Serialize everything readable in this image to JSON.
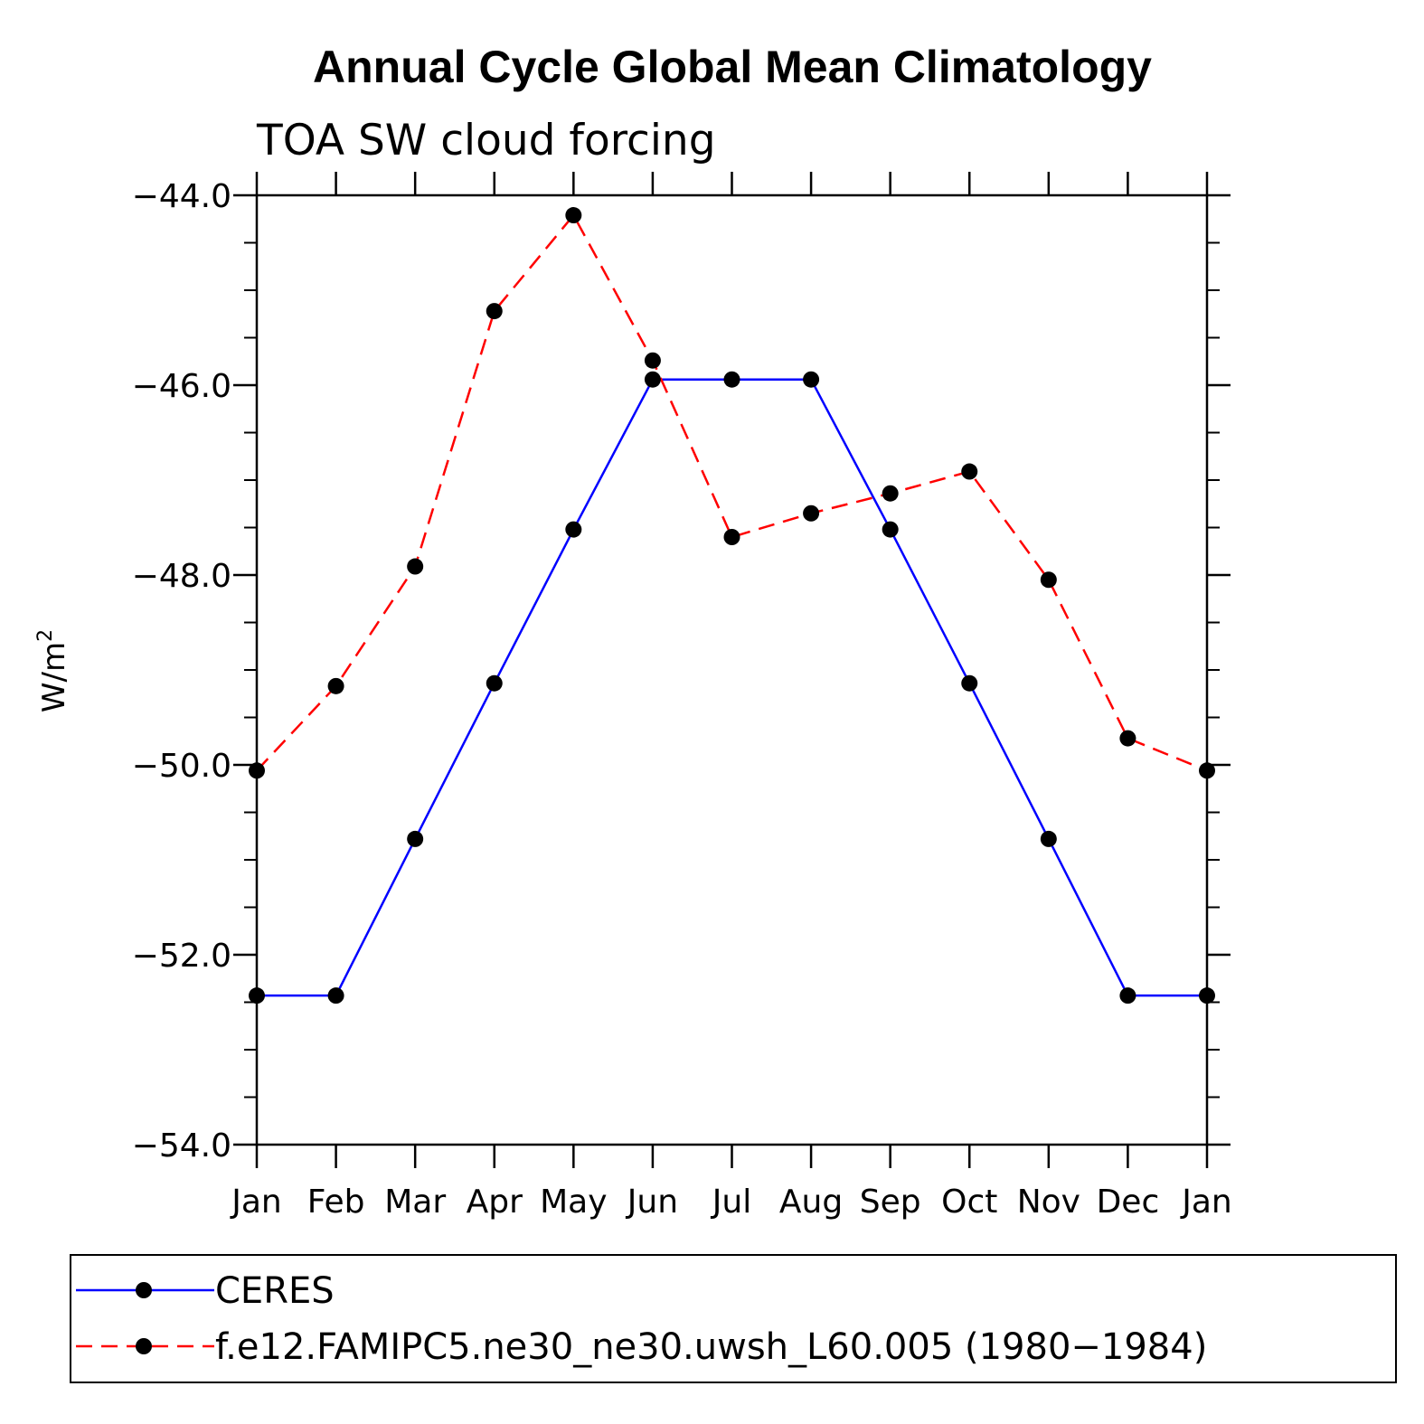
{
  "chart_data": {
    "type": "line",
    "title": "Annual Cycle Global Mean Climatology",
    "subtitle": "TOA SW cloud forcing",
    "ylabel": "W/m",
    "ylabel_sup": "2",
    "xlabel": "",
    "categories": [
      "Jan",
      "Feb",
      "Mar",
      "Apr",
      "May",
      "Jun",
      "Jul",
      "Aug",
      "Sep",
      "Oct",
      "Nov",
      "Dec",
      "Jan"
    ],
    "ylim": [
      -54.0,
      -44.0
    ],
    "yticks": [
      -54.0,
      -52.0,
      -50.0,
      -48.0,
      -46.0,
      -44.0
    ],
    "ytick_labels": [
      "−54.0",
      "−52.0",
      "−50.0",
      "−48.0",
      "−46.0",
      "−44.0"
    ],
    "grid": false,
    "legend_position": "bottom",
    "series": [
      {
        "name": "CERES",
        "color": "#0000ff",
        "dash": "solid",
        "values": [
          -52.43,
          -52.43,
          -50.78,
          -49.14,
          -47.52,
          -45.94,
          -45.94,
          -45.94,
          -47.52,
          -49.14,
          -50.78,
          -52.43,
          -52.43
        ]
      },
      {
        "name": "f.e12.FAMIPC5.ne30_ne30.uwsh_L60.005 (1980−1984)",
        "color": "#ff0000",
        "dash": "dashed",
        "values": [
          -50.06,
          -49.17,
          -47.91,
          -45.22,
          -44.21,
          -45.74,
          -47.6,
          -47.35,
          -47.14,
          -46.91,
          -48.05,
          -49.72,
          -50.06
        ]
      }
    ]
  }
}
